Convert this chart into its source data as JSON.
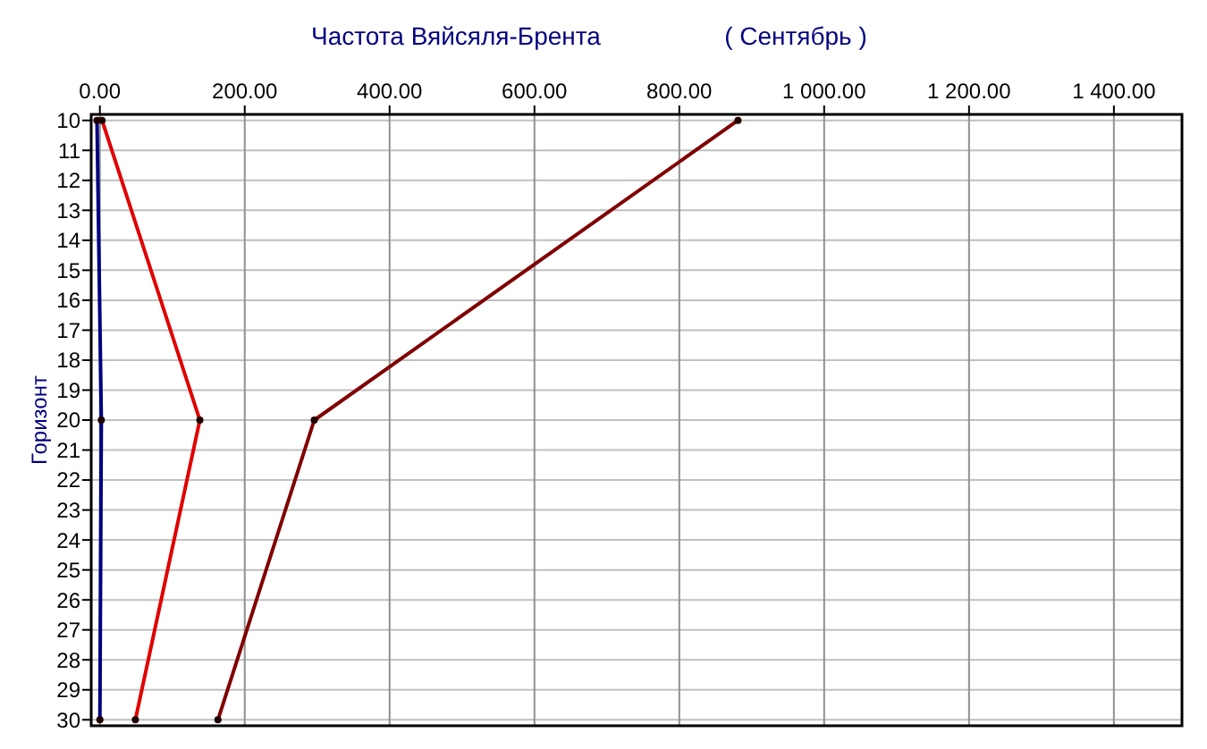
{
  "chart_data": {
    "type": "line",
    "title": "Частота Вяйсяля-Брента",
    "subtitle": "( Сентябрь )",
    "ylabel": "Горизонт",
    "x": [
      10,
      20,
      30
    ],
    "series": [
      {
        "color": "#800000",
        "values": [
          881,
          296,
          163
        ]
      },
      {
        "color": "#e00000",
        "values": [
          3,
          138,
          49
        ]
      },
      {
        "color": "#000080",
        "values": [
          -4,
          2,
          0
        ]
      }
    ],
    "orientation": "horizontal",
    "xlim": [
      -12,
      1494
    ],
    "xticks": [
      {
        "value": 0,
        "label": "0.00"
      },
      {
        "value": 200,
        "label": "200.00"
      },
      {
        "value": 400,
        "label": "400.00"
      },
      {
        "value": 600,
        "label": "600.00"
      },
      {
        "value": 800,
        "label": "800.00"
      },
      {
        "value": 1000,
        "label": "1 000.00"
      },
      {
        "value": 1200,
        "label": "1 200.00"
      },
      {
        "value": 1400,
        "label": "1 400.00"
      }
    ],
    "ylim": [
      30.2,
      9.8
    ],
    "yticks": [
      10,
      11,
      12,
      13,
      14,
      15,
      16,
      17,
      18,
      19,
      20,
      21,
      22,
      23,
      24,
      25,
      26,
      27,
      28,
      29,
      30
    ],
    "grid": true,
    "marker": "circle",
    "line_style": "solid"
  }
}
